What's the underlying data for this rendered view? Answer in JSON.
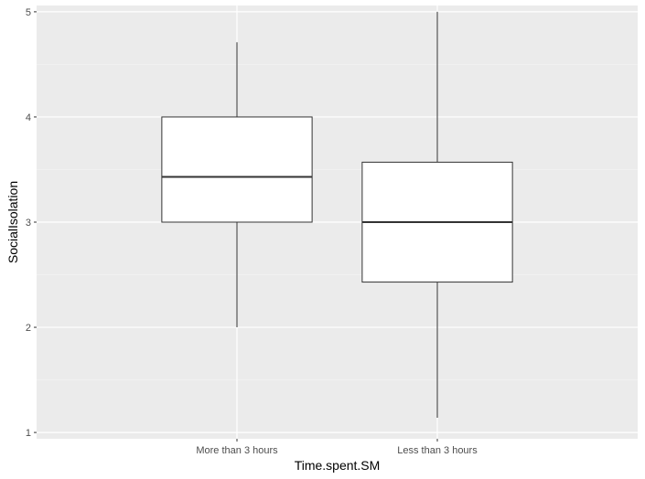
{
  "chart_data": {
    "type": "boxplot",
    "xlabel": "Time.spent.SM",
    "ylabel": "SocialIsolation",
    "ylim": [
      0.94,
      5.06
    ],
    "y_ticks": [
      1,
      2,
      3,
      4,
      5
    ],
    "y_tick_labels": [
      "1",
      "2",
      "3",
      "4",
      "5"
    ],
    "grid": true,
    "categories": [
      "More than 3 hours",
      "Less than 3 hours"
    ],
    "boxes": [
      {
        "category": "More than 3 hours",
        "whisker_low": 2.0,
        "q1": 3.0,
        "median": 3.43,
        "q3": 4.0,
        "whisker_high": 4.71
      },
      {
        "category": "Less than 3 hours",
        "whisker_low": 1.14,
        "q1": 2.43,
        "median": 3.0,
        "q3": 3.57,
        "whisker_high": 5.0
      }
    ],
    "colors": {
      "panel_background": "#ebebeb",
      "grid_major": "#ffffff",
      "grid_minor": "#f5f5f5",
      "box_fill": "#ffffff",
      "box_stroke": "#333333"
    }
  }
}
